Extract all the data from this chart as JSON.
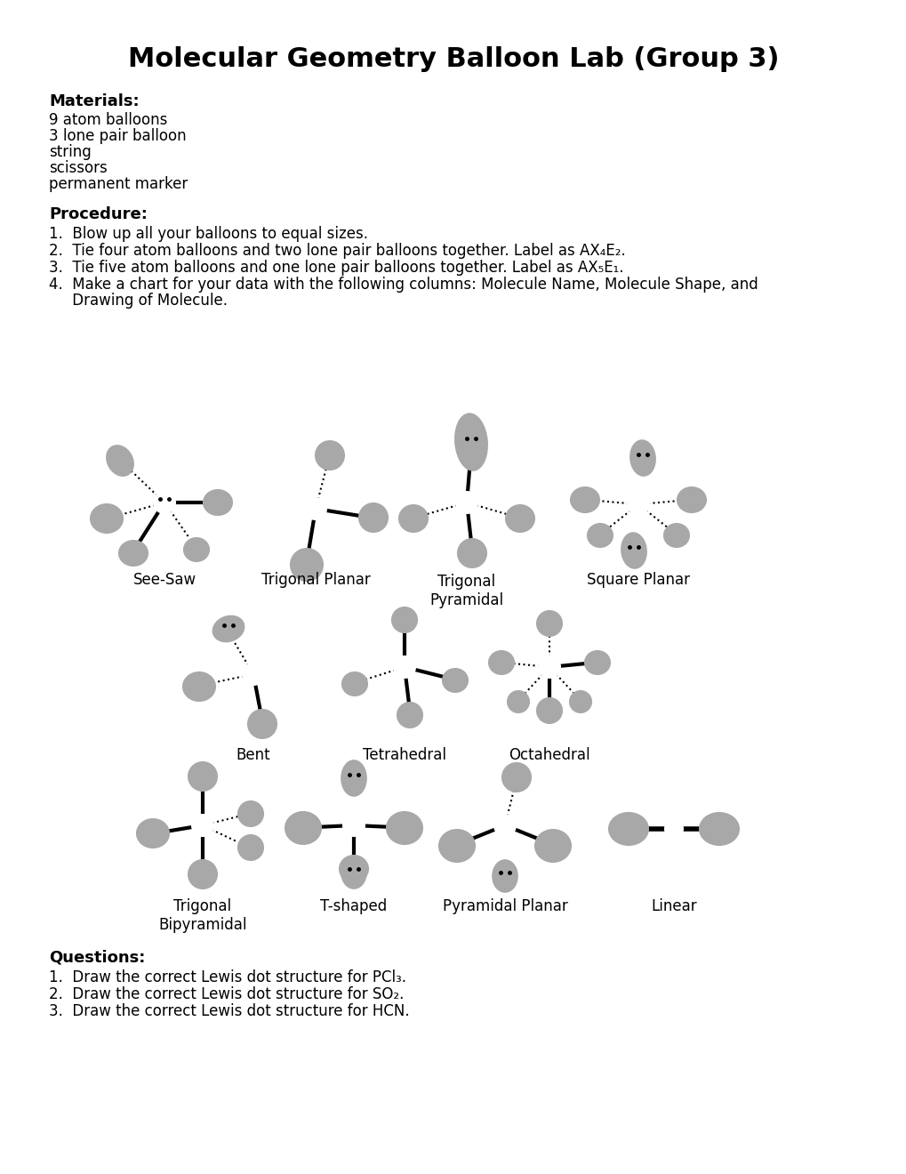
{
  "title": "Molecular Geometry Balloon Lab (Group 3)",
  "bg_color": "#ffffff",
  "materials_header": "Materials:",
  "materials_items": [
    "9 atom balloons",
    "3 lone pair balloon",
    "string",
    "scissors",
    "permanent marker"
  ],
  "procedure_header": "Procedure:",
  "questions_header": "Questions:",
  "gray": "#a8a8a8",
  "white": "#ffffff",
  "black": "#000000"
}
